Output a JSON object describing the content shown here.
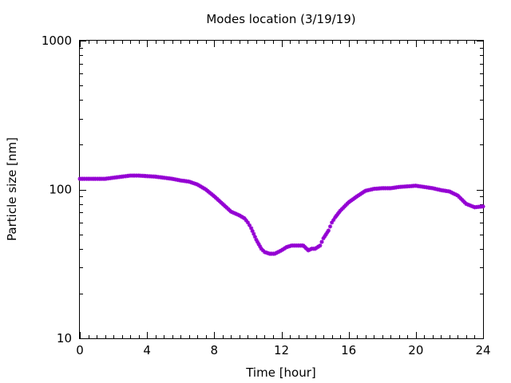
{
  "chart_data": {
    "type": "scatter",
    "title": "Modes location (3/19/19)",
    "xlabel": "Time [hour]",
    "ylabel": "Particle size [nm]",
    "xlim": [
      0,
      24
    ],
    "ylim": [
      10,
      1000
    ],
    "yscale": "log",
    "grid": false,
    "legend": "none",
    "xticks": [
      0,
      4,
      8,
      12,
      16,
      20,
      24
    ],
    "xtick_labels": [
      "0",
      "4",
      "8",
      "12",
      "16",
      "20",
      "24"
    ],
    "yticks": [
      10,
      100,
      1000
    ],
    "ytick_labels": [
      "10",
      "100",
      "1000"
    ],
    "marker_color": "#9400d3",
    "series": [
      {
        "x": [
          0,
          0.5,
          1,
          1.5,
          2,
          2.5,
          3,
          3.5,
          4,
          4.5,
          5,
          5.5,
          6,
          6.5,
          7,
          7.5,
          8,
          8.5,
          9,
          9.5,
          9.8,
          10,
          10.2,
          10.5,
          10.8,
          11,
          11.3,
          11.6,
          12,
          12.3,
          12.6,
          13,
          13.3,
          13.6,
          13.8,
          14,
          14.3,
          14.5,
          14.8,
          15,
          15.2,
          15.5,
          16,
          16.5,
          17,
          17.5,
          18,
          18.5,
          19,
          19.5,
          20,
          20.5,
          21,
          21.5,
          22,
          22.5,
          23,
          23.5,
          24
        ],
        "values": [
          118,
          118,
          118,
          118,
          120,
          122,
          124,
          124,
          123,
          122,
          120,
          118,
          115,
          113,
          108,
          100,
          90,
          80,
          71,
          67,
          64,
          60,
          55,
          46,
          40,
          38,
          37,
          37,
          39,
          41,
          42,
          42,
          42,
          39,
          40,
          40,
          42,
          47,
          53,
          60,
          65,
          72,
          82,
          90,
          98,
          101,
          102,
          102,
          104,
          105,
          106,
          104,
          102,
          99,
          97,
          91,
          80,
          76,
          77
        ]
      }
    ]
  }
}
